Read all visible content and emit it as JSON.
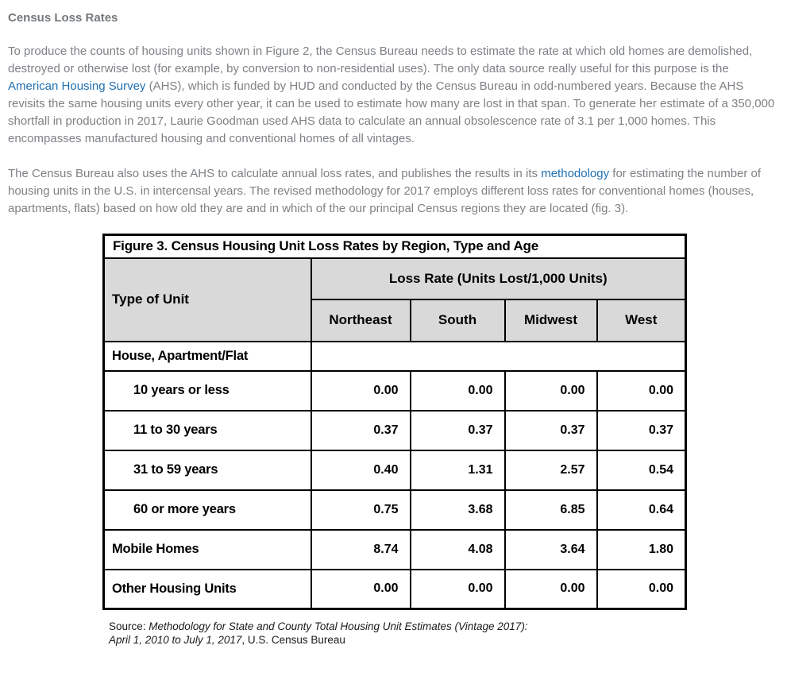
{
  "page": {
    "heading": "Census Loss Rates",
    "paragraph1": {
      "pre_link": "To produce the counts of housing units shown in Figure 2, the Census Bureau needs to estimate the rate at which old homes are demolished, destroyed or otherwise lost (for example, by conversion to non-residential uses). The only data source really useful for this purpose is the ",
      "link_text": "American Housing Survey",
      "post_link": " (AHS), which is funded by HUD and conducted by the Census Bureau in odd-numbered years. Because the AHS revisits the same housing units every other year, it can be used to estimate how many are lost in that span. To generate her estimate of a 350,000 shortfall in production in 2017, Laurie Goodman used AHS data to calculate an annual obsolescence rate of 3.1 per 1,000 homes. This encompasses manufactured housing and conventional homes of all vintages."
    },
    "paragraph2": {
      "pre_link": "The Census Bureau also uses the AHS to calculate annual loss rates, and publishes the results in its ",
      "link_text": "methodology",
      "post_link": " for estimating the number of housing units in the U.S. in intercensal years. The revised methodology for 2017 employs different loss rates for conventional homes (houses, apartments, flats) based on how old they are and in which of the our principal Census regions they are located (fig. 3)."
    }
  },
  "figure": {
    "title": "Figure 3. Census Housing Unit Loss Rates by Region, Type and Age",
    "row_header": "Type of Unit",
    "col_group_label": "Loss Rate (Units Lost/1,000 Units)",
    "columns": [
      "Northeast",
      "South",
      "Midwest",
      "West"
    ],
    "rows": [
      {
        "label": "House, Apartment/Flat",
        "indent": false,
        "section": true,
        "values": []
      },
      {
        "label": "10 years or less",
        "indent": true,
        "section": false,
        "values": [
          "0.00",
          "0.00",
          "0.00",
          "0.00"
        ]
      },
      {
        "label": "11 to 30 years",
        "indent": true,
        "section": false,
        "values": [
          "0.37",
          "0.37",
          "0.37",
          "0.37"
        ]
      },
      {
        "label": "31 to 59 years",
        "indent": true,
        "section": false,
        "values": [
          "0.40",
          "1.31",
          "2.57",
          "0.54"
        ]
      },
      {
        "label": "60 or more years",
        "indent": true,
        "section": false,
        "values": [
          "0.75",
          "3.68",
          "6.85",
          "0.64"
        ]
      },
      {
        "label": "Mobile Homes",
        "indent": false,
        "section": false,
        "values": [
          "8.74",
          "4.08",
          "3.64",
          "1.80"
        ]
      },
      {
        "label": "Other Housing Units",
        "indent": false,
        "section": false,
        "values": [
          "0.00",
          "0.00",
          "0.00",
          "0.00"
        ]
      }
    ],
    "source": {
      "prefix": "Source: ",
      "italic_line1": "Methodology for State and County Total Housing Unit Estimates (Vintage 2017):",
      "italic_line2": "April 1, 2010 to July 1, 2017",
      "suffix": ", U.S. Census Bureau"
    }
  },
  "colors": {
    "link_blue": "#1f6fb2",
    "body_text_gray": "#7e8185",
    "heading_gray": "#74787c",
    "table_header_gray": "#d9d9d9",
    "table_border_black": "#000000"
  }
}
